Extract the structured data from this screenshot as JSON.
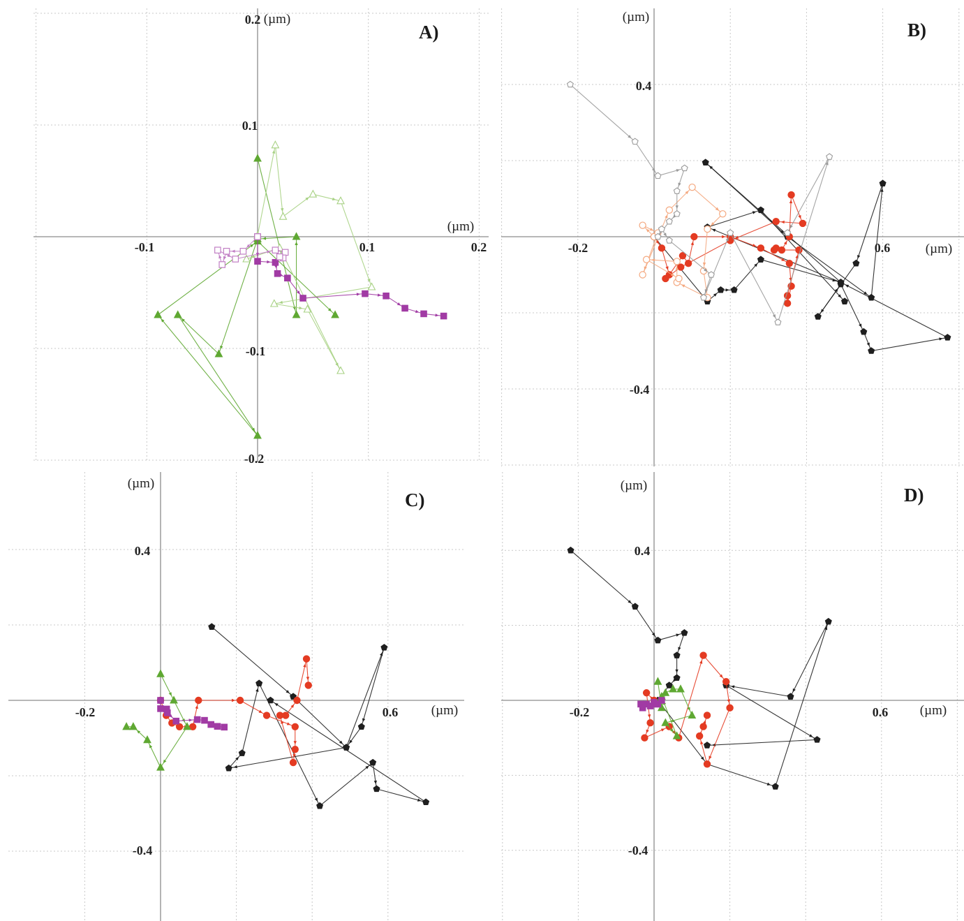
{
  "chart_data": [
    {
      "panel": "A)",
      "type": "line",
      "x_unit": "(µm)",
      "y_unit": "(µm)",
      "xlim": [
        -0.2,
        0.2
      ],
      "ylim": [
        -0.2,
        0.2
      ],
      "x_ticks": [
        "-0.1",
        "0.1",
        "0.2"
      ],
      "y_ticks": [
        "0.2",
        "0.1",
        "-0.1",
        "-0.2"
      ],
      "grid": true,
      "series": [
        {
          "color": "#5fa832",
          "marker": "triangle",
          "filled": true,
          "points": [
            [
              0,
              0.07
            ],
            [
              0.035,
              -0.07
            ],
            [
              0.035,
              0
            ],
            [
              0,
              -0.002
            ],
            [
              -0.035,
              -0.105
            ],
            [
              -0.072,
              -0.07
            ],
            [
              0,
              -0.178
            ],
            [
              -0.09,
              -0.07
            ],
            [
              0,
              -0.004
            ],
            [
              0.07,
              -0.07
            ]
          ]
        },
        {
          "color": "#a7d183",
          "marker": "triangle",
          "filled": false,
          "points": [
            [
              0,
              0.001
            ],
            [
              0.016,
              0.082
            ],
            [
              0.023,
              0.018
            ],
            [
              0.05,
              0.038
            ],
            [
              0.075,
              0.032
            ],
            [
              0.103,
              -0.045
            ],
            [
              0.015,
              -0.06
            ],
            [
              0.045,
              -0.065
            ],
            [
              0.075,
              -0.12
            ],
            [
              0.02,
              -0.01
            ],
            [
              -0.01,
              -0.02
            ]
          ]
        },
        {
          "color": "#a13ba4",
          "marker": "square",
          "filled": true,
          "points": [
            [
              0,
              0
            ],
            [
              0,
              -0.022
            ],
            [
              0.016,
              -0.023
            ],
            [
              0.018,
              -0.033
            ],
            [
              0.027,
              -0.037
            ],
            [
              0.041,
              -0.055
            ],
            [
              0.097,
              -0.051
            ],
            [
              0.116,
              -0.053
            ],
            [
              0.133,
              -0.064
            ],
            [
              0.15,
              -0.069
            ],
            [
              0.168,
              -0.071
            ]
          ]
        },
        {
          "color": "#c17fc4",
          "marker": "square",
          "filled": false,
          "points": [
            [
              0,
              0
            ],
            [
              -0.013,
              -0.013
            ],
            [
              -0.028,
              -0.013
            ],
            [
              -0.032,
              -0.025
            ],
            [
              -0.036,
              -0.012
            ],
            [
              -0.02,
              -0.02
            ],
            [
              0.016,
              -0.012
            ],
            [
              0.025,
              -0.014
            ],
            [
              0.023,
              -0.019
            ],
            [
              0.02,
              -0.018
            ]
          ]
        }
      ]
    },
    {
      "panel": "B)",
      "type": "line",
      "x_unit": "(µm)",
      "y_unit": "(µm)",
      "xlim": [
        -0.4,
        0.8
      ],
      "ylim": [
        -0.6,
        0.6
      ],
      "x_ticks": [
        "-0.2",
        "0.6"
      ],
      "y_ticks": [
        "0.4",
        "-0.4"
      ],
      "grid": true,
      "series": [
        {
          "color": "#1f1f1f",
          "marker": "pentagon",
          "filled": true,
          "points": [
            [
              0,
              0
            ],
            [
              0.14,
              -0.17
            ],
            [
              0.175,
              -0.14
            ],
            [
              0.21,
              -0.14
            ],
            [
              0.28,
              -0.06
            ],
            [
              0.49,
              -0.12
            ],
            [
              0.135,
              0.195
            ],
            [
              0.35,
              -0.0
            ],
            [
              0.57,
              -0.16
            ],
            [
              0.6,
              0.14
            ],
            [
              0.53,
              -0.07
            ],
            [
              0.43,
              -0.21
            ],
            [
              0.49,
              -0.125
            ],
            [
              0.55,
              -0.25
            ],
            [
              0.57,
              -0.3
            ],
            [
              0.77,
              -0.265
            ],
            [
              0.49,
              -0.12
            ],
            [
              0.14,
              0.025
            ],
            [
              0.28,
              0.07
            ],
            [
              0.5,
              -0.17
            ]
          ]
        },
        {
          "color": "#e43b22",
          "marker": "circle",
          "filled": true,
          "points": [
            [
              0,
              0
            ],
            [
              0.02,
              -0.03
            ],
            [
              0.04,
              -0.1
            ],
            [
              0.075,
              -0.05
            ],
            [
              0.09,
              -0.07
            ],
            [
              0.105,
              0.0
            ],
            [
              0.2,
              0.0
            ],
            [
              0.28,
              -0.03
            ],
            [
              0.355,
              -0.07
            ],
            [
              0.36,
              -0.13
            ],
            [
              0.35,
              -0.175
            ],
            [
              0.35,
              -0.155
            ],
            [
              0.38,
              -0.035
            ],
            [
              0.315,
              -0.035
            ],
            [
              0.32,
              -0.03
            ],
            [
              0.335,
              -0.035
            ],
            [
              0.355,
              0.0
            ],
            [
              0.36,
              0.11
            ],
            [
              0.39,
              0.035
            ],
            [
              0.32,
              0.04
            ],
            [
              0.2,
              -0.01
            ],
            [
              0.07,
              -0.08
            ],
            [
              0.03,
              -0.11
            ]
          ]
        },
        {
          "color": "#f4a87f",
          "marker": "circle",
          "filled": false,
          "points": [
            [
              0,
              0
            ],
            [
              -0.03,
              0.03
            ],
            [
              0.01,
              0.01
            ],
            [
              -0.03,
              -0.1
            ],
            [
              0.04,
              0.07
            ],
            [
              0.1,
              0.13
            ],
            [
              0.18,
              0.06
            ],
            [
              0.14,
              0.02
            ],
            [
              0.13,
              -0.09
            ],
            [
              0.14,
              -0.16
            ],
            [
              0.06,
              -0.12
            ],
            [
              0.06,
              -0.065
            ],
            [
              -0.02,
              -0.06
            ],
            [
              0.065,
              -0.11
            ]
          ]
        },
        {
          "color": "#9a9a9a",
          "marker": "pentagon",
          "filled": false,
          "points": [
            [
              -0.22,
              0.4
            ],
            [
              -0.05,
              0.25
            ],
            [
              0.01,
              0.16
            ],
            [
              0.08,
              0.18
            ],
            [
              0.06,
              0.12
            ],
            [
              0.06,
              0.06
            ],
            [
              0.04,
              0.04
            ],
            [
              0.01,
              0.0
            ],
            [
              0.02,
              0.02
            ],
            [
              0.04,
              -0.01
            ],
            [
              0.15,
              -0.1
            ],
            [
              0.13,
              -0.16
            ],
            [
              0.2,
              0.01
            ],
            [
              0.325,
              -0.225
            ],
            [
              0.46,
              0.21
            ],
            [
              0.35,
              0.01
            ]
          ]
        }
      ]
    },
    {
      "panel": "C)",
      "type": "line",
      "x_unit": "(µm)",
      "y_unit": "(µm)",
      "xlim": [
        -0.4,
        0.8
      ],
      "ylim": [
        -0.6,
        0.6
      ],
      "x_ticks": [
        "-0.2",
        "0.6"
      ],
      "y_ticks": [
        "0.4",
        "-0.4"
      ],
      "grid": true,
      "series": [
        {
          "color": "#1f1f1f",
          "marker": "pentagon",
          "filled": true,
          "points": [
            [
              0.135,
              0.195
            ],
            [
              0.35,
              0.01
            ],
            [
              0.49,
              -0.125
            ],
            [
              0.59,
              0.14
            ],
            [
              0.53,
              -0.07
            ],
            [
              0.49,
              -0.125
            ],
            [
              0.18,
              -0.18
            ],
            [
              0.215,
              -0.14
            ],
            [
              0.26,
              0.045
            ],
            [
              0.42,
              -0.28
            ],
            [
              0.56,
              -0.165
            ],
            [
              0.57,
              -0.235
            ],
            [
              0.7,
              -0.27
            ],
            [
              0.29,
              0.0
            ]
          ]
        },
        {
          "color": "#e43b22",
          "marker": "circle",
          "filled": true,
          "points": [
            [
              0,
              0
            ],
            [
              0.015,
              -0.04
            ],
            [
              0.03,
              -0.06
            ],
            [
              0.05,
              -0.07
            ],
            [
              0.085,
              -0.07
            ],
            [
              0.1,
              0.0
            ],
            [
              0.21,
              0.0
            ],
            [
              0.28,
              -0.04
            ],
            [
              0.355,
              -0.07
            ],
            [
              0.355,
              -0.13
            ],
            [
              0.35,
              -0.165
            ],
            [
              0.315,
              -0.04
            ],
            [
              0.33,
              -0.04
            ],
            [
              0.36,
              0.0
            ],
            [
              0.385,
              0.11
            ],
            [
              0.39,
              0.04
            ]
          ]
        },
        {
          "color": "#5fa832",
          "marker": "triangle",
          "filled": true,
          "points": [
            [
              0,
              0.07
            ],
            [
              0.035,
              0
            ],
            [
              0.07,
              -0.07
            ],
            [
              0,
              -0.178
            ],
            [
              -0.035,
              -0.105
            ],
            [
              -0.072,
              -0.07
            ],
            [
              -0.09,
              -0.07
            ]
          ]
        },
        {
          "color": "#a13ba4",
          "marker": "square",
          "filled": true,
          "points": [
            [
              0,
              0
            ],
            [
              0,
              -0.022
            ],
            [
              0.016,
              -0.023
            ],
            [
              0.018,
              -0.033
            ],
            [
              0.041,
              -0.055
            ],
            [
              0.097,
              -0.051
            ],
            [
              0.116,
              -0.053
            ],
            [
              0.133,
              -0.064
            ],
            [
              0.15,
              -0.069
            ],
            [
              0.168,
              -0.071
            ]
          ]
        }
      ]
    },
    {
      "panel": "D)",
      "type": "line",
      "x_unit": "(µm)",
      "y_unit": "(µm)",
      "xlim": [
        -0.4,
        0.8
      ],
      "ylim": [
        -0.6,
        0.6
      ],
      "x_ticks": [
        "-0.2",
        "0.6"
      ],
      "y_ticks": [
        "0.4",
        "-0.4"
      ],
      "grid": true,
      "series": [
        {
          "color": "#1f1f1f",
          "marker": "pentagon",
          "filled": true,
          "points": [
            [
              -0.22,
              0.4
            ],
            [
              -0.05,
              0.25
            ],
            [
              0.01,
              0.16
            ],
            [
              0.08,
              0.18
            ],
            [
              0.06,
              0.12
            ],
            [
              0.06,
              0.06
            ],
            [
              0.04,
              0.04
            ],
            [
              0.01,
              0.0
            ],
            [
              0.14,
              -0.17
            ],
            [
              0.32,
              -0.23
            ],
            [
              0.46,
              0.21
            ],
            [
              0.36,
              0.01
            ],
            [
              0.19,
              0.04
            ],
            [
              0.43,
              -0.105
            ],
            [
              0.14,
              -0.12
            ]
          ]
        },
        {
          "color": "#e43b22",
          "marker": "circle",
          "filled": true,
          "points": [
            [
              0,
              0
            ],
            [
              -0.02,
              0.02
            ],
            [
              -0.01,
              -0.06
            ],
            [
              -0.025,
              -0.1
            ],
            [
              0.04,
              -0.07
            ],
            [
              0.065,
              -0.1
            ],
            [
              0.13,
              0.12
            ],
            [
              0.19,
              0.05
            ],
            [
              0.2,
              -0.02
            ],
            [
              0.14,
              -0.17
            ],
            [
              0.12,
              -0.095
            ],
            [
              0.13,
              -0.07
            ],
            [
              0.14,
              -0.04
            ]
          ]
        },
        {
          "color": "#5fa832",
          "marker": "triangle",
          "filled": true,
          "points": [
            [
              0.01,
              0.05
            ],
            [
              0.02,
              -0.02
            ],
            [
              0.03,
              0.02
            ],
            [
              0.05,
              0.03
            ],
            [
              0.07,
              0.03
            ],
            [
              0.1,
              -0.04
            ],
            [
              0.03,
              -0.06
            ],
            [
              0.06,
              -0.095
            ],
            [
              0.02,
              0.01
            ],
            [
              0,
              -0.01
            ]
          ]
        },
        {
          "color": "#a13ba4",
          "marker": "square",
          "filled": true,
          "points": [
            [
              -0.035,
              -0.01
            ],
            [
              -0.03,
              -0.02
            ],
            [
              -0.02,
              -0.01
            ],
            [
              -0.01,
              -0.015
            ],
            [
              0,
              -0.005
            ],
            [
              0.01,
              -0.01
            ],
            [
              0.02,
              0.0
            ],
            [
              0.005,
              -0.01
            ]
          ]
        }
      ]
    }
  ]
}
